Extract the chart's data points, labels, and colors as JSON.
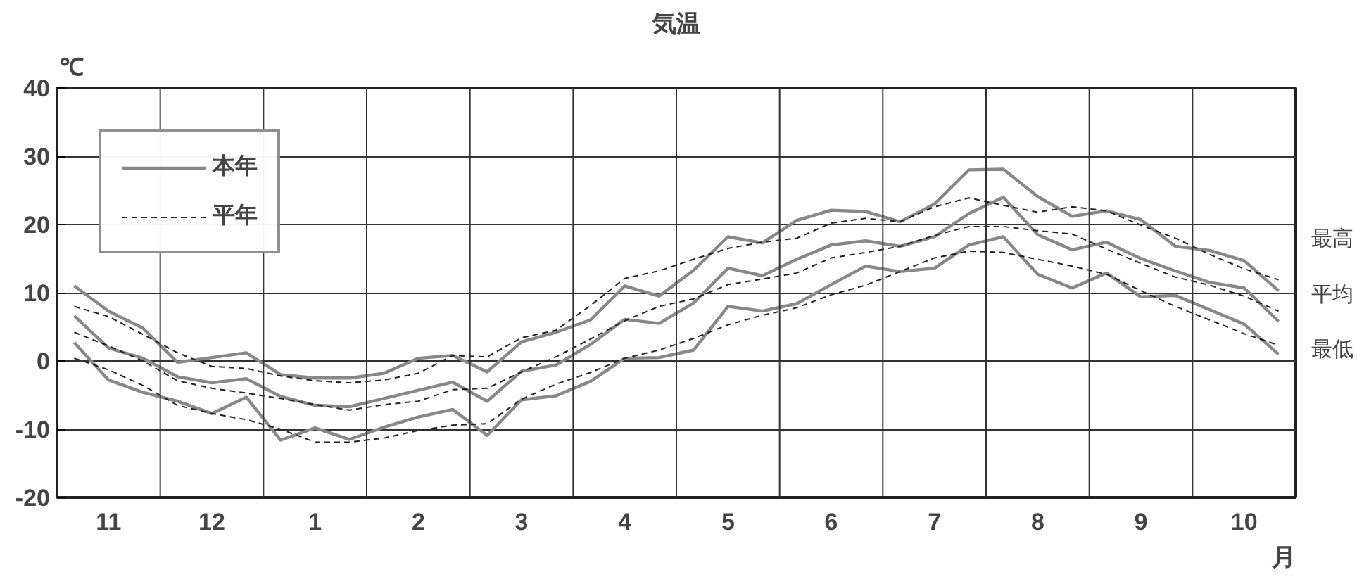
{
  "chart_data": {
    "type": "line",
    "title": "気温",
    "ylabel": "℃",
    "xlabel": "月",
    "categories": [
      null,
      "11",
      null,
      null,
      "12",
      null,
      null,
      "1",
      null,
      null,
      "2",
      null,
      null,
      "3",
      null,
      null,
      "4",
      null,
      null,
      "5",
      null,
      null,
      "6",
      null,
      null,
      "7",
      null,
      null,
      "8",
      null,
      null,
      "9",
      null,
      null,
      "10",
      null
    ],
    "ylim": [
      -20,
      40
    ],
    "yticks": [
      -20,
      -10,
      0,
      10,
      20,
      30,
      40
    ],
    "grid": true,
    "legend": "top left",
    "marker": "none",
    "series": [
      {
        "name": "本年",
        "color": "#888888",
        "line_style": "solid",
        "values": [
          11,
          7.3,
          4.8,
          -0.2,
          0.5,
          1.2,
          -2.0,
          -2.5,
          -2.5,
          -1.8,
          0.4,
          0.8,
          -1.6,
          2.8,
          4.2,
          6,
          11,
          9.5,
          13.3,
          18.2,
          17.3,
          20.6,
          22.1,
          21.9,
          20.4,
          23,
          28,
          28.1,
          24.1,
          21.2,
          22,
          20.7,
          16.8,
          16.2,
          14.7,
          10.3
        ]
      },
      {
        "color": "#888888",
        "line_style": "solid",
        "values": [
          6.6,
          1.9,
          0.4,
          -2.3,
          -3.2,
          -2.6,
          -5.2,
          -6.5,
          -6.7,
          -5.5,
          -4.3,
          -3.1,
          -5.9,
          -1.5,
          -0.6,
          2.4,
          6.1,
          5.5,
          8.5,
          13.6,
          12.5,
          14.9,
          17,
          17.6,
          16.8,
          18.2,
          21.6,
          24,
          18.5,
          16.3,
          17.4,
          15,
          13.2,
          11.5,
          10.7,
          5.8
        ]
      },
      {
        "color": "#888888",
        "line_style": "solid",
        "values": [
          2.7,
          -2.8,
          -4.6,
          -5.9,
          -7.7,
          -5.3,
          -11.6,
          -9.8,
          -11.5,
          -9.7,
          -8.2,
          -7.1,
          -10.9,
          -5.7,
          -5.1,
          -3,
          0.4,
          0.5,
          1.6,
          8,
          7.3,
          8.4,
          11.2,
          13.9,
          13.1,
          13.6,
          17,
          18.2,
          12.7,
          10.7,
          12.9,
          9.4,
          9.6,
          7.5,
          5.4,
          1
        ]
      },
      {
        "name": "平年",
        "color": "#222222",
        "line_style": "dashed",
        "values": [
          8,
          6.5,
          3.9,
          1.2,
          -0.8,
          -1.1,
          -2.2,
          -2.9,
          -3.2,
          -2.8,
          -1.8,
          0.8,
          0.6,
          3.4,
          4.5,
          8.1,
          12.1,
          13.2,
          14.9,
          16.5,
          17.4,
          18,
          20.2,
          20.9,
          20.4,
          22.6,
          23.9,
          22.8,
          21.8,
          22.6,
          22,
          19.9,
          18,
          15.6,
          13.5,
          11.9
        ]
      },
      {
        "color": "#222222",
        "line_style": "dashed",
        "values": [
          4.2,
          2.2,
          0,
          -2.9,
          -4,
          -4.7,
          -5.5,
          -6.4,
          -7.2,
          -6.4,
          -5.9,
          -4.2,
          -4,
          -1.6,
          0.6,
          3.2,
          5.9,
          8,
          9.1,
          11.2,
          12,
          12.9,
          15.1,
          15.9,
          16.8,
          18.4,
          19.7,
          19.7,
          19.1,
          18.6,
          16.4,
          14.3,
          12.3,
          11.1,
          9.5,
          7.3
        ]
      },
      {
        "color": "#222222",
        "line_style": "dashed",
        "values": [
          0.4,
          -1.3,
          -3.6,
          -6.5,
          -7.7,
          -8.6,
          -10,
          -11.9,
          -11.9,
          -11.3,
          -10.2,
          -9.4,
          -9.2,
          -5.6,
          -3.4,
          -1.7,
          0.4,
          1.6,
          3.3,
          5.3,
          6.7,
          7.8,
          9.7,
          11.1,
          13.1,
          15.1,
          16.1,
          15.9,
          14.9,
          13.9,
          12.7,
          10.3,
          8,
          6,
          4,
          2.3
        ]
      }
    ],
    "annotations": [
      "最高",
      "平均",
      "最低"
    ]
  }
}
